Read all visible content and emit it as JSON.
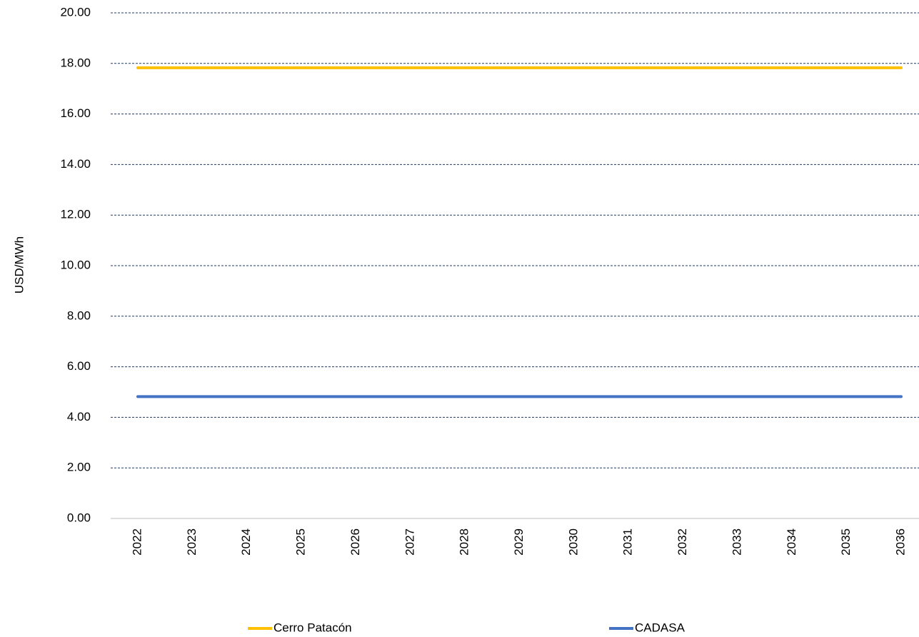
{
  "chart_data": {
    "type": "line",
    "y_label": "USD/MWh",
    "categories": [
      "2022",
      "2023",
      "2024",
      "2025",
      "2026",
      "2027",
      "2028",
      "2029",
      "2030",
      "2031",
      "2032",
      "2033",
      "2034",
      "2035",
      "2036"
    ],
    "series": [
      {
        "name": "Cerro Patacón",
        "color": "#ffc000",
        "values": [
          17.83,
          17.83,
          17.83,
          17.83,
          17.83,
          17.83,
          17.83,
          17.83,
          17.83,
          17.83,
          17.83,
          17.83,
          17.83,
          17.83,
          17.83
        ]
      },
      {
        "name": "CADASA",
        "color": "#4472c4",
        "values": [
          4.82,
          4.82,
          4.82,
          4.82,
          4.82,
          4.82,
          4.82,
          4.82,
          4.82,
          4.82,
          4.82,
          4.82,
          4.82,
          4.82,
          4.82
        ]
      }
    ],
    "ylim": [
      0,
      20
    ],
    "yticks": [
      {
        "value": 0,
        "label": "0.00"
      },
      {
        "value": 2,
        "label": "2.00"
      },
      {
        "value": 4,
        "label": "4.00"
      },
      {
        "value": 6,
        "label": "6.00"
      },
      {
        "value": 8,
        "label": "8.00"
      },
      {
        "value": 10,
        "label": "10.00"
      },
      {
        "value": 12,
        "label": "12.00"
      },
      {
        "value": 14,
        "label": "14.00"
      },
      {
        "value": 16,
        "label": "16.00"
      },
      {
        "value": 18,
        "label": "18.00"
      },
      {
        "value": 20,
        "label": "20.00"
      }
    ],
    "grid": true,
    "legend": "bottom"
  }
}
